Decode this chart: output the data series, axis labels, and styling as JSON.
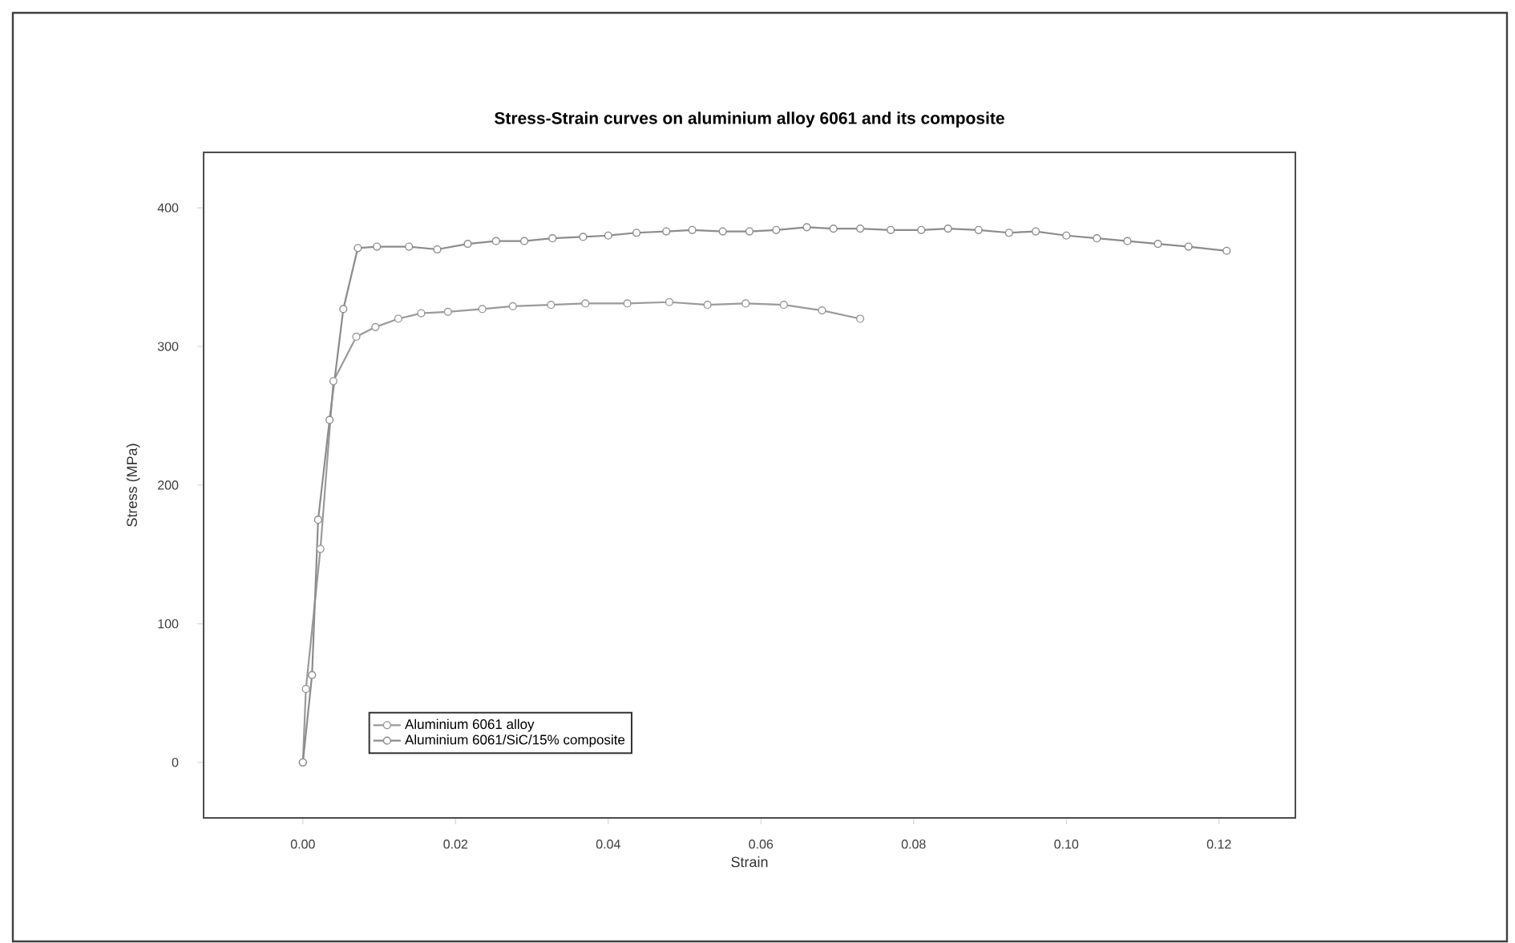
{
  "chart_data": {
    "type": "line",
    "title": "Stress-Strain curves on aluminium alloy 6061 and its composite",
    "xlabel": "Strain",
    "ylabel": "Stress (MPa)",
    "xlim": [
      -0.013,
      0.13
    ],
    "ylim": [
      -40,
      440
    ],
    "xticks": [
      {
        "value": 0,
        "label": "0.00"
      },
      {
        "value": 0.02,
        "label": "0.02"
      },
      {
        "value": 0.04,
        "label": "0.04"
      },
      {
        "value": 0.06,
        "label": "0.06"
      },
      {
        "value": 0.08,
        "label": "0.08"
      },
      {
        "value": 0.1,
        "label": "0.10"
      },
      {
        "value": 0.12,
        "label": "0.12"
      }
    ],
    "yticks": [
      0,
      100,
      200,
      300,
      400
    ],
    "grid": false,
    "legend": "bottom left",
    "marker": "circle",
    "line_style": "solid",
    "series": [
      {
        "name": "Aluminium 6061 alloy",
        "color": "#9a9a9a",
        "x": [
          0,
          0.0004,
          0.0023,
          0.004,
          0.007,
          0.0095,
          0.0125,
          0.0155,
          0.019,
          0.0235,
          0.0275,
          0.0325,
          0.037,
          0.0425,
          0.048,
          0.053,
          0.058,
          0.063,
          0.068,
          0.073
        ],
        "values": [
          0,
          53,
          154,
          275,
          307,
          314,
          320,
          324,
          325,
          327,
          329,
          330,
          331,
          331,
          332,
          330,
          331,
          330,
          326,
          320
        ]
      },
      {
        "name": "Aluminium 6061/SiC/15% composite",
        "color": "#8c8c8c",
        "x": [
          0,
          0.0012,
          0.002,
          0.0035,
          0.0053,
          0.0072,
          0.0097,
          0.0139,
          0.0176,
          0.0216,
          0.0253,
          0.029,
          0.0327,
          0.0367,
          0.04,
          0.0437,
          0.0476,
          0.051,
          0.055,
          0.0585,
          0.062,
          0.066,
          0.0695,
          0.073,
          0.077,
          0.081,
          0.0845,
          0.0885,
          0.0925,
          0.096,
          0.1,
          0.104,
          0.108,
          0.112,
          0.116,
          0.121
        ],
        "values": [
          0,
          63,
          175,
          247,
          327,
          371,
          372,
          372,
          370,
          374,
          376,
          376,
          378,
          379,
          380,
          382,
          383,
          384,
          383,
          383,
          384,
          386,
          385,
          385,
          384,
          384,
          385,
          384,
          382,
          383,
          380,
          378,
          376,
          374,
          372,
          369
        ]
      }
    ]
  }
}
